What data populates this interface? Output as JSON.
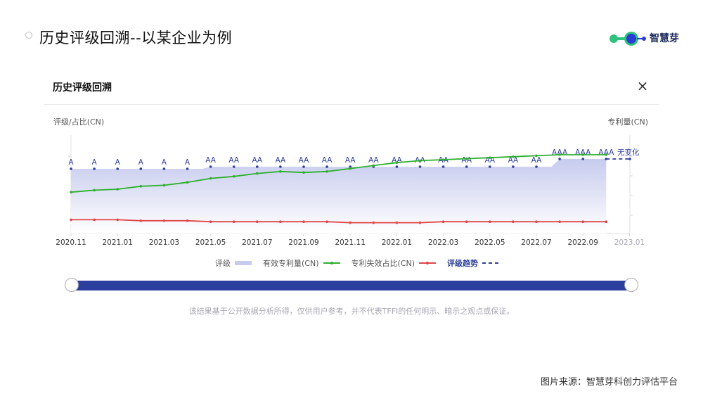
{
  "slide": {
    "title": "历史评级回溯--以某企业为例",
    "brand_name": "智慧芽",
    "source": "图片来源：智慧芽科创力评估平台"
  },
  "panel": {
    "title": "历史评级回溯",
    "close_icon": "close-icon",
    "left_axis_caption": "评级/占比(CN)",
    "right_axis_caption": "专利量(CN)",
    "disclaimer": "该结果基于公开数据分析所得，仅供用户参考，并不代表TFFI的任何明示、暗示之观点或保证。"
  },
  "colors": {
    "rating_area": "#c7cbee",
    "valid_patents": "#2db02d",
    "invalid_ratio": "#e04646",
    "trend": "#2c3e9e",
    "slider": "#2c3e9e"
  },
  "chart_data": {
    "type": "line",
    "x": [
      "2020.11",
      "2020.12",
      "2021.01",
      "2021.02",
      "2021.03",
      "2021.04",
      "2021.05",
      "2021.06",
      "2021.07",
      "2021.08",
      "2021.09",
      "2021.10",
      "2021.11",
      "2021.12",
      "2022.01",
      "2022.02",
      "2022.03",
      "2022.04",
      "2022.05",
      "2022.06",
      "2022.07",
      "2022.08",
      "2022.09",
      "2022.10"
    ],
    "x_tick_labels": [
      "2020.11",
      "2021.01",
      "2021.03",
      "2021.05",
      "2021.07",
      "2021.09",
      "2021.11",
      "2022.01",
      "2022.03",
      "2022.05",
      "2022.07",
      "2022.09",
      "2023.01"
    ],
    "rating_labels": [
      "A",
      "A",
      "A",
      "A",
      "A",
      "A",
      "AA",
      "AA",
      "AA",
      "AA",
      "AA",
      "AA",
      "AA",
      "AA",
      "AA",
      "AA",
      "AA",
      "AA",
      "AA",
      "AA",
      "AA",
      "AAA",
      "AAA",
      "AAA"
    ],
    "rating_level": [
      1,
      1,
      1,
      1,
      1,
      1,
      2,
      2,
      2,
      2,
      2,
      2,
      2,
      2,
      2,
      2,
      2,
      2,
      2,
      2,
      2,
      3,
      3,
      3
    ],
    "trend_label": "无变化",
    "series": [
      {
        "name": "评级",
        "kind": "area"
      },
      {
        "name": "有效专利量(CN)",
        "values": [
          42,
          44,
          45,
          48,
          49,
          52,
          56,
          58,
          61,
          63,
          62,
          63,
          66,
          69,
          72,
          74,
          75,
          76,
          77,
          78,
          79,
          80,
          80,
          80
        ]
      },
      {
        "name": "专利失效占比(CN)",
        "values": [
          14,
          14,
          14,
          13,
          13,
          13,
          12,
          12,
          12,
          12,
          12,
          12,
          11,
          11,
          11,
          11,
          12,
          12,
          12,
          12,
          12,
          12,
          12,
          12
        ]
      },
      {
        "name": "评级趋势",
        "kind": "dashed"
      }
    ],
    "legend_placement": "bottom",
    "grid": false
  }
}
